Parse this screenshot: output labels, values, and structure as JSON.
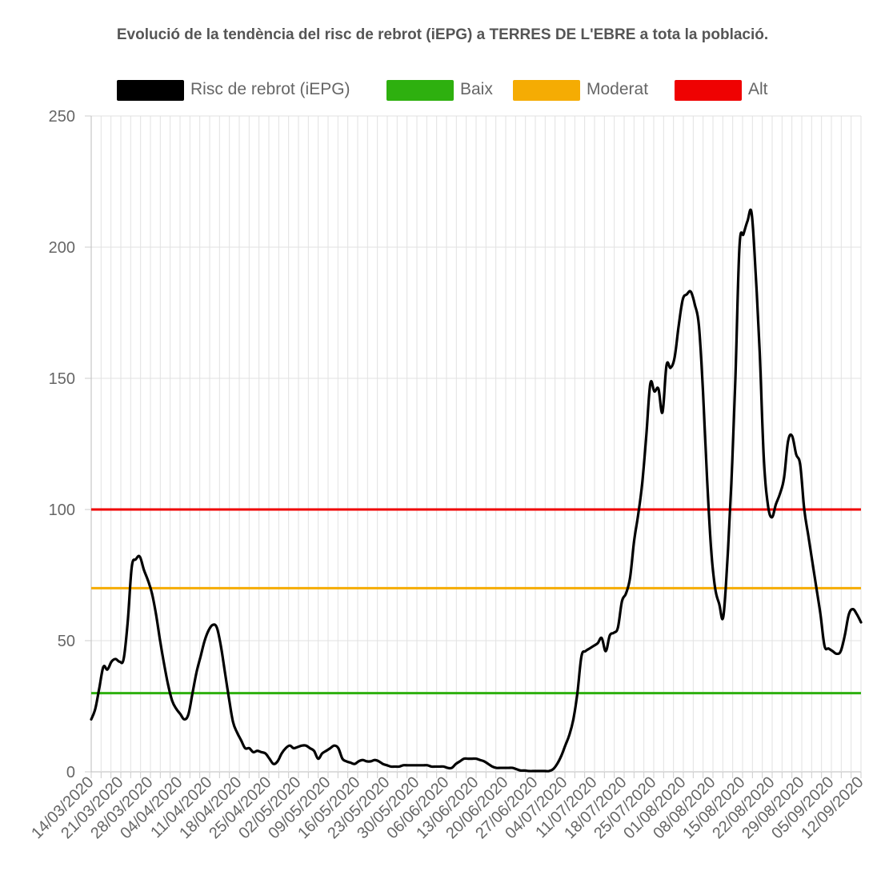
{
  "chart_data": {
    "type": "line",
    "title": "Evolució de la tendència del risc de rebrot (iEPG) a TERRES DE L'EBRE a tota la població.",
    "xlabel": "",
    "ylabel": "",
    "ylim": [
      0,
      250
    ],
    "y_ticks": [
      "0",
      "50",
      "100",
      "150",
      "200",
      "250"
    ],
    "grid": true,
    "legend_position": "top",
    "x_tick_labels": [
      "14/03/2020",
      "21/03/2020",
      "28/03/2020",
      "04/04/2020",
      "11/04/2020",
      "18/04/2020",
      "25/04/2020",
      "02/05/2020",
      "09/05/2020",
      "16/05/2020",
      "23/05/2020",
      "30/05/2020",
      "06/06/2020",
      "13/06/2020",
      "20/06/2020",
      "27/06/2020",
      "04/07/2020",
      "11/07/2020",
      "18/07/2020",
      "25/07/2020",
      "01/08/2020",
      "08/08/2020",
      "15/08/2020",
      "22/08/2020",
      "29/08/2020",
      "05/09/2020",
      "12/09/2020"
    ],
    "series": [
      {
        "name": "Risc de rebrot (iEPG)",
        "color": "#000000",
        "values": [
          20,
          24,
          32,
          40,
          39,
          42,
          43,
          42,
          43,
          57,
          78,
          81,
          82,
          77,
          73,
          68,
          60,
          50,
          41,
          33,
          27,
          24,
          22,
          20,
          22,
          30,
          38,
          44,
          50,
          54,
          56,
          55,
          48,
          38,
          28,
          19,
          15,
          12,
          9,
          9,
          7.5,
          8,
          7.5,
          7,
          5,
          3,
          4,
          7,
          9,
          10,
          9,
          9.5,
          10,
          10,
          9,
          8,
          5,
          7,
          8,
          9,
          10,
          9,
          5,
          4,
          3.5,
          3,
          4,
          4.5,
          4,
          4,
          4.5,
          4,
          3,
          2.5,
          2,
          2,
          2,
          2.5,
          2.5,
          2.5,
          2.5,
          2.5,
          2.5,
          2.5,
          2,
          2,
          2,
          2,
          1.5,
          1.5,
          3,
          4,
          5,
          5,
          5,
          5,
          4.5,
          4,
          3,
          2,
          1.5,
          1.5,
          1.5,
          1.5,
          1.5,
          1,
          0.5,
          0.5,
          0.3,
          0.3,
          0.3,
          0.3,
          0.3,
          0.3,
          1,
          3,
          6,
          10,
          14,
          20,
          30,
          44,
          46,
          47,
          48,
          49,
          51,
          46,
          52,
          53,
          55,
          65,
          68,
          74,
          88,
          98,
          110,
          128,
          148,
          145,
          146,
          137,
          155,
          154,
          158,
          170,
          180,
          182,
          183,
          178,
          170,
          145,
          112,
          85,
          70,
          64,
          59,
          80,
          110,
          150,
          200,
          205,
          210,
          213,
          190,
          160,
          120,
          102,
          97,
          102,
          106,
          112,
          126,
          128,
          121,
          117,
          100,
          90,
          80,
          70,
          60,
          48,
          47,
          46,
          45,
          46,
          52,
          60,
          62,
          60,
          57
        ]
      },
      {
        "name": "Baix",
        "color": "#2eb00f",
        "values": [
          30,
          30
        ]
      },
      {
        "name": "Moderat",
        "color": "#f5ac03",
        "values": [
          70,
          70
        ]
      },
      {
        "name": "Alt",
        "color": "#ef0202",
        "values": [
          100,
          100
        ]
      }
    ]
  }
}
